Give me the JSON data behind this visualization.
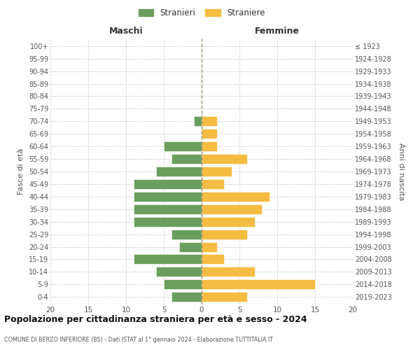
{
  "age_groups": [
    "0-4",
    "5-9",
    "10-14",
    "15-19",
    "20-24",
    "25-29",
    "30-34",
    "35-39",
    "40-44",
    "45-49",
    "50-54",
    "55-59",
    "60-64",
    "65-69",
    "70-74",
    "75-79",
    "80-84",
    "85-89",
    "90-94",
    "95-99",
    "100+"
  ],
  "birth_years": [
    "2019-2023",
    "2014-2018",
    "2009-2013",
    "2004-2008",
    "1999-2003",
    "1994-1998",
    "1989-1993",
    "1984-1988",
    "1979-1983",
    "1974-1978",
    "1969-1973",
    "1964-1968",
    "1959-1963",
    "1954-1958",
    "1949-1953",
    "1944-1948",
    "1939-1943",
    "1934-1938",
    "1929-1933",
    "1924-1928",
    "≤ 1923"
  ],
  "males": [
    4,
    5,
    6,
    9,
    3,
    4,
    9,
    9,
    9,
    9,
    6,
    4,
    5,
    0,
    1,
    0,
    0,
    0,
    0,
    0,
    0
  ],
  "females": [
    6,
    15,
    7,
    3,
    2,
    6,
    7,
    8,
    9,
    3,
    4,
    6,
    2,
    2,
    2,
    0,
    0,
    0,
    0,
    0,
    0
  ],
  "male_color": "#6b9e5e",
  "female_color": "#f5bc42",
  "title": "Popolazione per cittadinanza straniera per età e sesso - 2024",
  "subtitle": "COMUNE DI BERZO INFERIORE (BS) - Dati ISTAT al 1° gennaio 2024 - Elaborazione TUTTITALIA.IT",
  "left_label": "Maschi",
  "right_label": "Femmine",
  "y_label_left": "Fasce di età",
  "y_label_right": "Anni di nascita",
  "legend_male": "Stranieri",
  "legend_female": "Straniere",
  "xlim": 20,
  "background_color": "#ffffff",
  "grid_color": "#cccccc"
}
